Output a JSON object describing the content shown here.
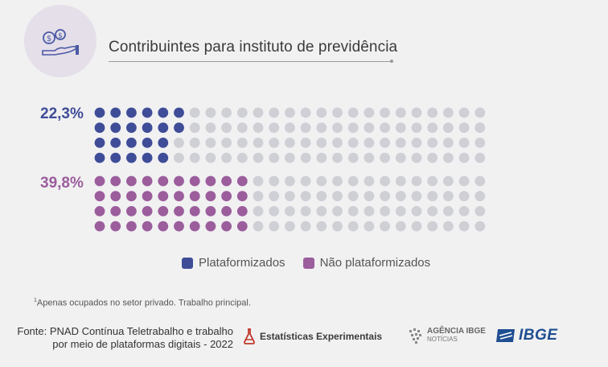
{
  "title": "Contribuintes para instituto de previdência",
  "icon": "money-hand-icon",
  "chart_data": {
    "type": "waffle",
    "title": "Contribuintes para instituto de previdência",
    "grid": {
      "rows": 4,
      "cols": 25
    },
    "series": [
      {
        "name": "Plataformizados",
        "value": 22.3,
        "label": "22,3%",
        "filled_dots": 22,
        "color": "#3f4d98"
      },
      {
        "name": "Não plataformizados",
        "value": 39.8,
        "label": "39,8%",
        "filled_dots": 40,
        "color": "#9b5d9c"
      }
    ],
    "empty_color": "#cfcfd6"
  },
  "legend": [
    {
      "label": "Plataformizados",
      "color": "#3f4d98"
    },
    {
      "label": "Não plataformizados",
      "color": "#9b5d9c"
    }
  ],
  "footnote": {
    "mark": "1",
    "text": "Apenas ocupados no setor privado. Trabalho principal."
  },
  "source": {
    "line1": "Fonte: PNAD Contínua Teletrabalho e trabalho",
    "line2": "por meio de plataformas digitais - 2022"
  },
  "logos": {
    "experimental": "Estatísticas Experimentais",
    "agencia_line1": "AGÊNCIA IBGE",
    "agencia_line2": "NOTÍCIAS",
    "ibge": "IBGE"
  }
}
